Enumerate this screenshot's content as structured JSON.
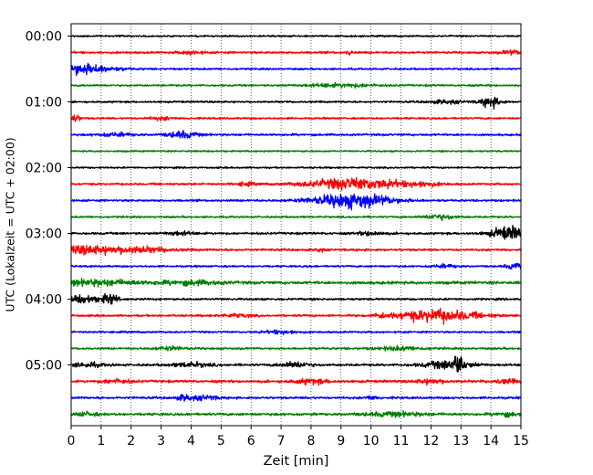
{
  "chart_data": {
    "type": "line",
    "title": "",
    "xlabel": "Zeit  [min]",
    "ylabel": "UTC (Lokalzeit = UTC + 02:00)",
    "xlim": [
      0,
      15
    ],
    "x_ticks": [
      0,
      1,
      2,
      3,
      4,
      5,
      6,
      7,
      8,
      9,
      10,
      11,
      12,
      13,
      14,
      15
    ],
    "y_tick_labels": [
      "00:00",
      "01:00",
      "02:00",
      "03:00",
      "04:00",
      "05:00"
    ],
    "grid": "vertical dotted lines at each minute",
    "trace_minutes": 15,
    "trace_colors_cycle": [
      "#000000",
      "#ff0000",
      "#0000ff",
      "#008000"
    ],
    "traces": [
      {
        "start": "00:00",
        "color": "#000000",
        "noise": 0.8,
        "events": []
      },
      {
        "start": "00:15",
        "color": "#ff0000",
        "noise": 1.0,
        "events": [
          {
            "t": 4.0,
            "amp": 1.5,
            "dur": 0.4
          },
          {
            "t": 9.3,
            "amp": 2.0,
            "dur": 0.1
          },
          {
            "t": 14.7,
            "amp": 1.8,
            "dur": 0.4
          }
        ]
      },
      {
        "start": "00:30",
        "color": "#0000ff",
        "noise": 0.9,
        "events": [
          {
            "t": 0.3,
            "amp": 4.5,
            "dur": 0.6
          },
          {
            "t": 1.0,
            "amp": 2.0,
            "dur": 0.8
          }
        ]
      },
      {
        "start": "00:45",
        "color": "#008000",
        "noise": 0.9,
        "events": [
          {
            "t": 9.0,
            "amp": 1.6,
            "dur": 1.2
          }
        ]
      },
      {
        "start": "01:00",
        "color": "#000000",
        "noise": 0.9,
        "events": [
          {
            "t": 14.0,
            "amp": 5.0,
            "dur": 0.35
          },
          {
            "t": 12.5,
            "amp": 1.5,
            "dur": 0.6
          }
        ]
      },
      {
        "start": "01:15",
        "color": "#ff0000",
        "noise": 0.9,
        "events": [
          {
            "t": 0.1,
            "amp": 3.5,
            "dur": 0.2
          },
          {
            "t": 3.0,
            "amp": 1.4,
            "dur": 0.4
          }
        ]
      },
      {
        "start": "01:30",
        "color": "#0000ff",
        "noise": 1.0,
        "events": [
          {
            "t": 3.7,
            "amp": 3.0,
            "dur": 0.5
          },
          {
            "t": 1.5,
            "amp": 1.5,
            "dur": 0.6
          }
        ]
      },
      {
        "start": "01:45",
        "color": "#008000",
        "noise": 0.8,
        "events": []
      },
      {
        "start": "02:00",
        "color": "#000000",
        "noise": 0.8,
        "events": []
      },
      {
        "start": "02:15",
        "color": "#ff0000",
        "noise": 1.0,
        "events": [
          {
            "t": 9.5,
            "amp": 5.5,
            "dur": 1.6
          },
          {
            "t": 5.8,
            "amp": 1.5,
            "dur": 0.3
          },
          {
            "t": 11.8,
            "amp": 1.6,
            "dur": 0.5
          }
        ]
      },
      {
        "start": "02:30",
        "color": "#0000ff",
        "noise": 1.0,
        "events": [
          {
            "t": 9.4,
            "amp": 7.0,
            "dur": 1.3
          }
        ]
      },
      {
        "start": "02:45",
        "color": "#008000",
        "noise": 0.9,
        "events": [
          {
            "t": 12.3,
            "amp": 2.5,
            "dur": 0.5
          }
        ]
      },
      {
        "start": "03:00",
        "color": "#000000",
        "noise": 1.1,
        "events": [
          {
            "t": 14.6,
            "amp": 6.0,
            "dur": 0.6
          },
          {
            "t": 10.0,
            "amp": 1.8,
            "dur": 0.4
          },
          {
            "t": 3.6,
            "amp": 1.5,
            "dur": 0.5
          }
        ]
      },
      {
        "start": "03:15",
        "color": "#ff0000",
        "noise": 1.1,
        "events": [
          {
            "t": 0.4,
            "amp": 3.5,
            "dur": 0.8
          },
          {
            "t": 2.0,
            "amp": 3.0,
            "dur": 1.2
          },
          {
            "t": 8.3,
            "amp": 2.0,
            "dur": 0.1
          }
        ]
      },
      {
        "start": "03:30",
        "color": "#0000ff",
        "noise": 0.9,
        "events": [
          {
            "t": 14.8,
            "amp": 2.5,
            "dur": 0.3
          },
          {
            "t": 12.5,
            "amp": 1.5,
            "dur": 0.4
          }
        ]
      },
      {
        "start": "03:45",
        "color": "#008000",
        "noise": 1.4,
        "events": [
          {
            "t": 0.8,
            "amp": 2.5,
            "dur": 1.5
          },
          {
            "t": 4.0,
            "amp": 1.8,
            "dur": 1.0
          }
        ]
      },
      {
        "start": "04:00",
        "color": "#000000",
        "noise": 1.0,
        "events": [
          {
            "t": 0.4,
            "amp": 3.5,
            "dur": 0.6
          },
          {
            "t": 1.3,
            "amp": 5.0,
            "dur": 0.25
          }
        ]
      },
      {
        "start": "04:15",
        "color": "#ff0000",
        "noise": 1.0,
        "events": [
          {
            "t": 12.2,
            "amp": 5.5,
            "dur": 1.4
          },
          {
            "t": 10.3,
            "amp": 1.8,
            "dur": 0.2
          },
          {
            "t": 5.5,
            "amp": 1.5,
            "dur": 0.5
          }
        ]
      },
      {
        "start": "04:30",
        "color": "#0000ff",
        "noise": 0.9,
        "events": [
          {
            "t": 7.0,
            "amp": 1.5,
            "dur": 0.6
          }
        ]
      },
      {
        "start": "04:45",
        "color": "#008000",
        "noise": 1.0,
        "events": [
          {
            "t": 3.3,
            "amp": 1.6,
            "dur": 0.5
          },
          {
            "t": 11.0,
            "amp": 1.6,
            "dur": 0.8
          }
        ]
      },
      {
        "start": "05:00",
        "color": "#000000",
        "noise": 1.1,
        "events": [
          {
            "t": 12.6,
            "amp": 4.0,
            "dur": 0.8
          },
          {
            "t": 12.8,
            "amp": 10.0,
            "dur": 0.08
          },
          {
            "t": 13.0,
            "amp": 6.0,
            "dur": 0.1
          },
          {
            "t": 7.5,
            "amp": 2.5,
            "dur": 0.5
          },
          {
            "t": 4.0,
            "amp": 2.0,
            "dur": 0.6
          },
          {
            "t": 0.5,
            "amp": 1.8,
            "dur": 0.6
          }
        ]
      },
      {
        "start": "05:15",
        "color": "#ff0000",
        "noise": 1.2,
        "events": [
          {
            "t": 8.0,
            "amp": 2.2,
            "dur": 0.6
          },
          {
            "t": 12.0,
            "amp": 2.0,
            "dur": 0.5
          },
          {
            "t": 1.5,
            "amp": 1.8,
            "dur": 0.5
          },
          {
            "t": 14.5,
            "amp": 1.8,
            "dur": 0.4
          }
        ]
      },
      {
        "start": "05:30",
        "color": "#0000ff",
        "noise": 1.1,
        "events": [
          {
            "t": 3.8,
            "amp": 2.5,
            "dur": 0.3
          },
          {
            "t": 4.5,
            "amp": 2.0,
            "dur": 0.4
          },
          {
            "t": 10.0,
            "amp": 1.6,
            "dur": 0.2
          }
        ]
      },
      {
        "start": "05:45",
        "color": "#008000",
        "noise": 1.2,
        "events": [
          {
            "t": 10.8,
            "amp": 1.8,
            "dur": 1.0
          },
          {
            "t": 0.5,
            "amp": 1.6,
            "dur": 0.4
          },
          {
            "t": 14.5,
            "amp": 1.8,
            "dur": 0.4
          }
        ]
      }
    ]
  }
}
